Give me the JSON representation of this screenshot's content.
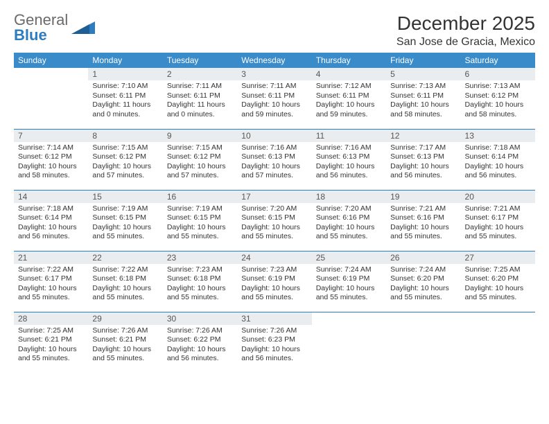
{
  "brand": {
    "part1": "General",
    "part2": "Blue"
  },
  "title": "December 2025",
  "location": "San Jose de Gracia, Mexico",
  "colors": {
    "header_bg": "#3a8bc9",
    "rule": "#2e7cc0",
    "daynum_bg": "#e9edf0",
    "text": "#333333",
    "logo_gray": "#6a6a6a",
    "logo_blue": "#2e7cc0"
  },
  "weekdays": [
    "Sunday",
    "Monday",
    "Tuesday",
    "Wednesday",
    "Thursday",
    "Friday",
    "Saturday"
  ],
  "weeks": [
    [
      null,
      {
        "n": "1",
        "sr": "Sunrise: 7:10 AM",
        "ss": "Sunset: 6:11 PM",
        "dl": "Daylight: 11 hours and 0 minutes."
      },
      {
        "n": "2",
        "sr": "Sunrise: 7:11 AM",
        "ss": "Sunset: 6:11 PM",
        "dl": "Daylight: 11 hours and 0 minutes."
      },
      {
        "n": "3",
        "sr": "Sunrise: 7:11 AM",
        "ss": "Sunset: 6:11 PM",
        "dl": "Daylight: 10 hours and 59 minutes."
      },
      {
        "n": "4",
        "sr": "Sunrise: 7:12 AM",
        "ss": "Sunset: 6:11 PM",
        "dl": "Daylight: 10 hours and 59 minutes."
      },
      {
        "n": "5",
        "sr": "Sunrise: 7:13 AM",
        "ss": "Sunset: 6:11 PM",
        "dl": "Daylight: 10 hours and 58 minutes."
      },
      {
        "n": "6",
        "sr": "Sunrise: 7:13 AM",
        "ss": "Sunset: 6:12 PM",
        "dl": "Daylight: 10 hours and 58 minutes."
      }
    ],
    [
      {
        "n": "7",
        "sr": "Sunrise: 7:14 AM",
        "ss": "Sunset: 6:12 PM",
        "dl": "Daylight: 10 hours and 58 minutes."
      },
      {
        "n": "8",
        "sr": "Sunrise: 7:15 AM",
        "ss": "Sunset: 6:12 PM",
        "dl": "Daylight: 10 hours and 57 minutes."
      },
      {
        "n": "9",
        "sr": "Sunrise: 7:15 AM",
        "ss": "Sunset: 6:12 PM",
        "dl": "Daylight: 10 hours and 57 minutes."
      },
      {
        "n": "10",
        "sr": "Sunrise: 7:16 AM",
        "ss": "Sunset: 6:13 PM",
        "dl": "Daylight: 10 hours and 57 minutes."
      },
      {
        "n": "11",
        "sr": "Sunrise: 7:16 AM",
        "ss": "Sunset: 6:13 PM",
        "dl": "Daylight: 10 hours and 56 minutes."
      },
      {
        "n": "12",
        "sr": "Sunrise: 7:17 AM",
        "ss": "Sunset: 6:13 PM",
        "dl": "Daylight: 10 hours and 56 minutes."
      },
      {
        "n": "13",
        "sr": "Sunrise: 7:18 AM",
        "ss": "Sunset: 6:14 PM",
        "dl": "Daylight: 10 hours and 56 minutes."
      }
    ],
    [
      {
        "n": "14",
        "sr": "Sunrise: 7:18 AM",
        "ss": "Sunset: 6:14 PM",
        "dl": "Daylight: 10 hours and 56 minutes."
      },
      {
        "n": "15",
        "sr": "Sunrise: 7:19 AM",
        "ss": "Sunset: 6:15 PM",
        "dl": "Daylight: 10 hours and 55 minutes."
      },
      {
        "n": "16",
        "sr": "Sunrise: 7:19 AM",
        "ss": "Sunset: 6:15 PM",
        "dl": "Daylight: 10 hours and 55 minutes."
      },
      {
        "n": "17",
        "sr": "Sunrise: 7:20 AM",
        "ss": "Sunset: 6:15 PM",
        "dl": "Daylight: 10 hours and 55 minutes."
      },
      {
        "n": "18",
        "sr": "Sunrise: 7:20 AM",
        "ss": "Sunset: 6:16 PM",
        "dl": "Daylight: 10 hours and 55 minutes."
      },
      {
        "n": "19",
        "sr": "Sunrise: 7:21 AM",
        "ss": "Sunset: 6:16 PM",
        "dl": "Daylight: 10 hours and 55 minutes."
      },
      {
        "n": "20",
        "sr": "Sunrise: 7:21 AM",
        "ss": "Sunset: 6:17 PM",
        "dl": "Daylight: 10 hours and 55 minutes."
      }
    ],
    [
      {
        "n": "21",
        "sr": "Sunrise: 7:22 AM",
        "ss": "Sunset: 6:17 PM",
        "dl": "Daylight: 10 hours and 55 minutes."
      },
      {
        "n": "22",
        "sr": "Sunrise: 7:22 AM",
        "ss": "Sunset: 6:18 PM",
        "dl": "Daylight: 10 hours and 55 minutes."
      },
      {
        "n": "23",
        "sr": "Sunrise: 7:23 AM",
        "ss": "Sunset: 6:18 PM",
        "dl": "Daylight: 10 hours and 55 minutes."
      },
      {
        "n": "24",
        "sr": "Sunrise: 7:23 AM",
        "ss": "Sunset: 6:19 PM",
        "dl": "Daylight: 10 hours and 55 minutes."
      },
      {
        "n": "25",
        "sr": "Sunrise: 7:24 AM",
        "ss": "Sunset: 6:19 PM",
        "dl": "Daylight: 10 hours and 55 minutes."
      },
      {
        "n": "26",
        "sr": "Sunrise: 7:24 AM",
        "ss": "Sunset: 6:20 PM",
        "dl": "Daylight: 10 hours and 55 minutes."
      },
      {
        "n": "27",
        "sr": "Sunrise: 7:25 AM",
        "ss": "Sunset: 6:20 PM",
        "dl": "Daylight: 10 hours and 55 minutes."
      }
    ],
    [
      {
        "n": "28",
        "sr": "Sunrise: 7:25 AM",
        "ss": "Sunset: 6:21 PM",
        "dl": "Daylight: 10 hours and 55 minutes."
      },
      {
        "n": "29",
        "sr": "Sunrise: 7:26 AM",
        "ss": "Sunset: 6:21 PM",
        "dl": "Daylight: 10 hours and 55 minutes."
      },
      {
        "n": "30",
        "sr": "Sunrise: 7:26 AM",
        "ss": "Sunset: 6:22 PM",
        "dl": "Daylight: 10 hours and 56 minutes."
      },
      {
        "n": "31",
        "sr": "Sunrise: 7:26 AM",
        "ss": "Sunset: 6:23 PM",
        "dl": "Daylight: 10 hours and 56 minutes."
      },
      null,
      null,
      null
    ]
  ]
}
